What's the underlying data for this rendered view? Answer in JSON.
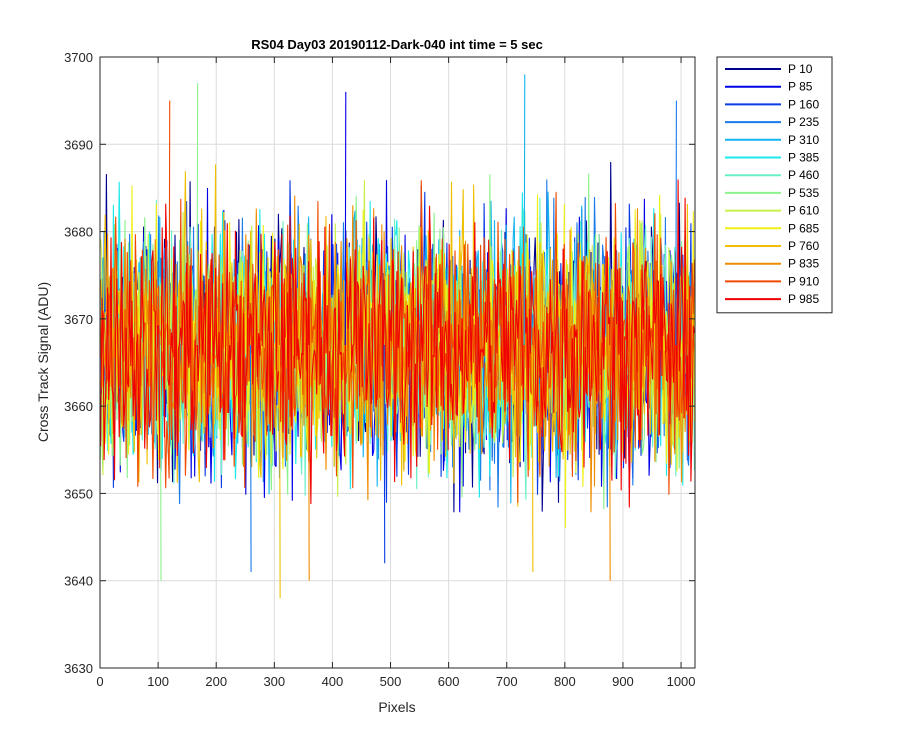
{
  "chart_data": {
    "type": "line",
    "title": "RS04 Day03 20190112-Dark-040 int time = 5 sec",
    "xlabel": "Pixels",
    "ylabel": "Cross Track Signal (ADU)",
    "xlim": [
      0,
      1024
    ],
    "ylim": [
      3630,
      3700
    ],
    "x_ticks": [
      0,
      100,
      200,
      300,
      400,
      500,
      600,
      700,
      800,
      900,
      1000
    ],
    "y_ticks": [
      3630,
      3640,
      3650,
      3660,
      3670,
      3680,
      3690,
      3700
    ],
    "grid": true,
    "legend_position": "outside-top-right",
    "noise_summary": {
      "mean": 3667,
      "typical_min": 3650,
      "typical_max": 3686,
      "extreme_min": 3638,
      "extreme_max": 3698
    },
    "series": [
      {
        "name": "P 10",
        "color": "#00008F"
      },
      {
        "name": "P 85",
        "color": "#0000E6"
      },
      {
        "name": "P 160",
        "color": "#0A3CE6"
      },
      {
        "name": "P 235",
        "color": "#1A7AE8"
      },
      {
        "name": "P 310",
        "color": "#14B4F0"
      },
      {
        "name": "P 385",
        "color": "#1AEAEA"
      },
      {
        "name": "P 460",
        "color": "#6AF0C8"
      },
      {
        "name": "P 535",
        "color": "#8CF28C"
      },
      {
        "name": "P 610",
        "color": "#C8F046"
      },
      {
        "name": "P 685",
        "color": "#F0F014"
      },
      {
        "name": "P 760",
        "color": "#F0C000"
      },
      {
        "name": "P 835",
        "color": "#F08C00"
      },
      {
        "name": "P 910",
        "color": "#F04A00"
      },
      {
        "name": "P 985",
        "color": "#F00000"
      }
    ],
    "extremes": [
      {
        "series": "P 910",
        "x": 120,
        "y": 3695
      },
      {
        "series": "P 535",
        "x": 168,
        "y": 3697
      },
      {
        "series": "P 85",
        "x": 423,
        "y": 3696
      },
      {
        "series": "P 310",
        "x": 731,
        "y": 3698
      },
      {
        "series": "P 235",
        "x": 992,
        "y": 3695
      },
      {
        "series": "P 535",
        "x": 105,
        "y": 3640
      },
      {
        "series": "P 760",
        "x": 310,
        "y": 3638
      },
      {
        "series": "P 835",
        "x": 360,
        "y": 3640
      },
      {
        "series": "P 760",
        "x": 745,
        "y": 3641
      },
      {
        "series": "P 835",
        "x": 878,
        "y": 3640
      },
      {
        "series": "P 235",
        "x": 260,
        "y": 3641
      },
      {
        "series": "P 160",
        "x": 490,
        "y": 3642
      }
    ]
  }
}
